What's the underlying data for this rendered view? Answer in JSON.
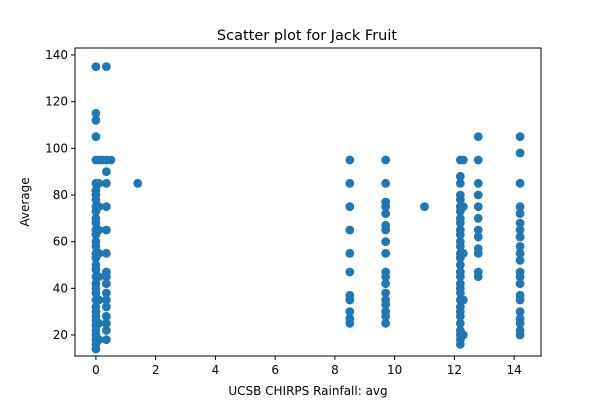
{
  "chart_data": {
    "type": "scatter",
    "title": "Scatter plot for Jack Fruit",
    "xlabel": "UCSB CHIRPS Rainfall: avg",
    "ylabel": "Average",
    "xlim": [
      -0.7,
      14.9
    ],
    "ylim": [
      11,
      143
    ],
    "xticks": [
      0,
      2,
      4,
      6,
      8,
      10,
      12,
      14
    ],
    "yticks": [
      20,
      40,
      60,
      80,
      100,
      120,
      140
    ],
    "grid": false,
    "legend": "none",
    "color": "#1f77b4",
    "series": [
      {
        "points": [
          [
            0,
            14
          ],
          [
            0,
            16
          ],
          [
            0,
            18
          ],
          [
            0,
            20
          ],
          [
            0,
            22
          ],
          [
            0,
            24
          ],
          [
            0,
            26
          ],
          [
            0,
            28
          ],
          [
            0,
            30
          ],
          [
            0,
            32
          ],
          [
            0,
            35
          ],
          [
            0,
            38
          ],
          [
            0,
            40
          ],
          [
            0,
            42
          ],
          [
            0,
            45
          ],
          [
            0,
            48
          ],
          [
            0,
            50
          ],
          [
            0,
            53
          ],
          [
            0,
            55
          ],
          [
            0,
            58
          ],
          [
            0,
            60
          ],
          [
            0,
            63
          ],
          [
            0,
            65
          ],
          [
            0,
            68
          ],
          [
            0,
            70
          ],
          [
            0,
            73
          ],
          [
            0,
            75
          ],
          [
            0,
            78
          ],
          [
            0,
            80
          ],
          [
            0,
            82
          ],
          [
            0,
            85
          ],
          [
            0,
            95
          ],
          [
            0,
            105
          ],
          [
            0,
            112
          ],
          [
            0,
            115
          ],
          [
            0,
            135
          ],
          [
            0.1,
            18
          ],
          [
            0.1,
            25
          ],
          [
            0.1,
            35
          ],
          [
            0.1,
            45
          ],
          [
            0.1,
            55
          ],
          [
            0.1,
            65
          ],
          [
            0.1,
            75
          ],
          [
            0.1,
            85
          ],
          [
            0.1,
            95
          ],
          [
            0.2,
            95
          ],
          [
            0.35,
            18
          ],
          [
            0.35,
            22
          ],
          [
            0.35,
            25
          ],
          [
            0.35,
            28
          ],
          [
            0.35,
            32
          ],
          [
            0.35,
            35
          ],
          [
            0.35,
            38
          ],
          [
            0.35,
            42
          ],
          [
            0.35,
            45
          ],
          [
            0.35,
            47
          ],
          [
            0.35,
            55
          ],
          [
            0.35,
            65
          ],
          [
            0.35,
            75
          ],
          [
            0.35,
            85
          ],
          [
            0.35,
            90
          ],
          [
            0.35,
            95
          ],
          [
            0.35,
            135
          ],
          [
            0.5,
            95
          ],
          [
            1.4,
            85
          ],
          [
            8.5,
            25
          ],
          [
            8.5,
            27
          ],
          [
            8.5,
            30
          ],
          [
            8.5,
            35
          ],
          [
            8.5,
            37
          ],
          [
            8.5,
            47
          ],
          [
            8.5,
            55
          ],
          [
            8.5,
            65
          ],
          [
            8.5,
            75
          ],
          [
            8.5,
            85
          ],
          [
            8.5,
            95
          ],
          [
            9.7,
            25
          ],
          [
            9.7,
            28
          ],
          [
            9.7,
            30
          ],
          [
            9.7,
            33
          ],
          [
            9.7,
            35
          ],
          [
            9.7,
            38
          ],
          [
            9.7,
            42
          ],
          [
            9.7,
            45
          ],
          [
            9.7,
            47
          ],
          [
            9.7,
            55
          ],
          [
            9.7,
            60
          ],
          [
            9.7,
            65
          ],
          [
            9.7,
            67
          ],
          [
            9.7,
            72
          ],
          [
            9.7,
            75
          ],
          [
            9.7,
            77
          ],
          [
            9.7,
            85
          ],
          [
            9.7,
            95
          ],
          [
            11,
            75
          ],
          [
            12.2,
            16
          ],
          [
            12.2,
            18
          ],
          [
            12.2,
            20
          ],
          [
            12.2,
            22
          ],
          [
            12.2,
            25
          ],
          [
            12.2,
            28
          ],
          [
            12.2,
            30
          ],
          [
            12.2,
            32
          ],
          [
            12.2,
            35
          ],
          [
            12.2,
            38
          ],
          [
            12.2,
            40
          ],
          [
            12.2,
            42
          ],
          [
            12.2,
            45
          ],
          [
            12.2,
            47
          ],
          [
            12.2,
            50
          ],
          [
            12.2,
            53
          ],
          [
            12.2,
            55
          ],
          [
            12.2,
            58
          ],
          [
            12.2,
            60
          ],
          [
            12.2,
            63
          ],
          [
            12.2,
            65
          ],
          [
            12.2,
            68
          ],
          [
            12.2,
            70
          ],
          [
            12.2,
            73
          ],
          [
            12.2,
            75
          ],
          [
            12.2,
            78
          ],
          [
            12.2,
            80
          ],
          [
            12.2,
            85
          ],
          [
            12.2,
            88
          ],
          [
            12.2,
            95
          ],
          [
            12.3,
            20
          ],
          [
            12.3,
            35
          ],
          [
            12.3,
            55
          ],
          [
            12.3,
            75
          ],
          [
            12.3,
            95
          ],
          [
            12.8,
            45
          ],
          [
            12.8,
            47
          ],
          [
            12.8,
            55
          ],
          [
            12.8,
            57
          ],
          [
            12.8,
            62
          ],
          [
            12.8,
            65
          ],
          [
            12.8,
            70
          ],
          [
            12.8,
            75
          ],
          [
            12.8,
            80
          ],
          [
            12.8,
            85
          ],
          [
            12.8,
            95
          ],
          [
            12.8,
            105
          ],
          [
            14.2,
            20
          ],
          [
            14.2,
            22
          ],
          [
            14.2,
            25
          ],
          [
            14.2,
            27
          ],
          [
            14.2,
            30
          ],
          [
            14.2,
            35
          ],
          [
            14.2,
            37
          ],
          [
            14.2,
            42
          ],
          [
            14.2,
            45
          ],
          [
            14.2,
            47
          ],
          [
            14.2,
            52
          ],
          [
            14.2,
            55
          ],
          [
            14.2,
            58
          ],
          [
            14.2,
            62
          ],
          [
            14.2,
            65
          ],
          [
            14.2,
            68
          ],
          [
            14.2,
            72
          ],
          [
            14.2,
            75
          ],
          [
            14.2,
            85
          ],
          [
            14.2,
            98
          ],
          [
            14.2,
            105
          ]
        ]
      }
    ]
  }
}
